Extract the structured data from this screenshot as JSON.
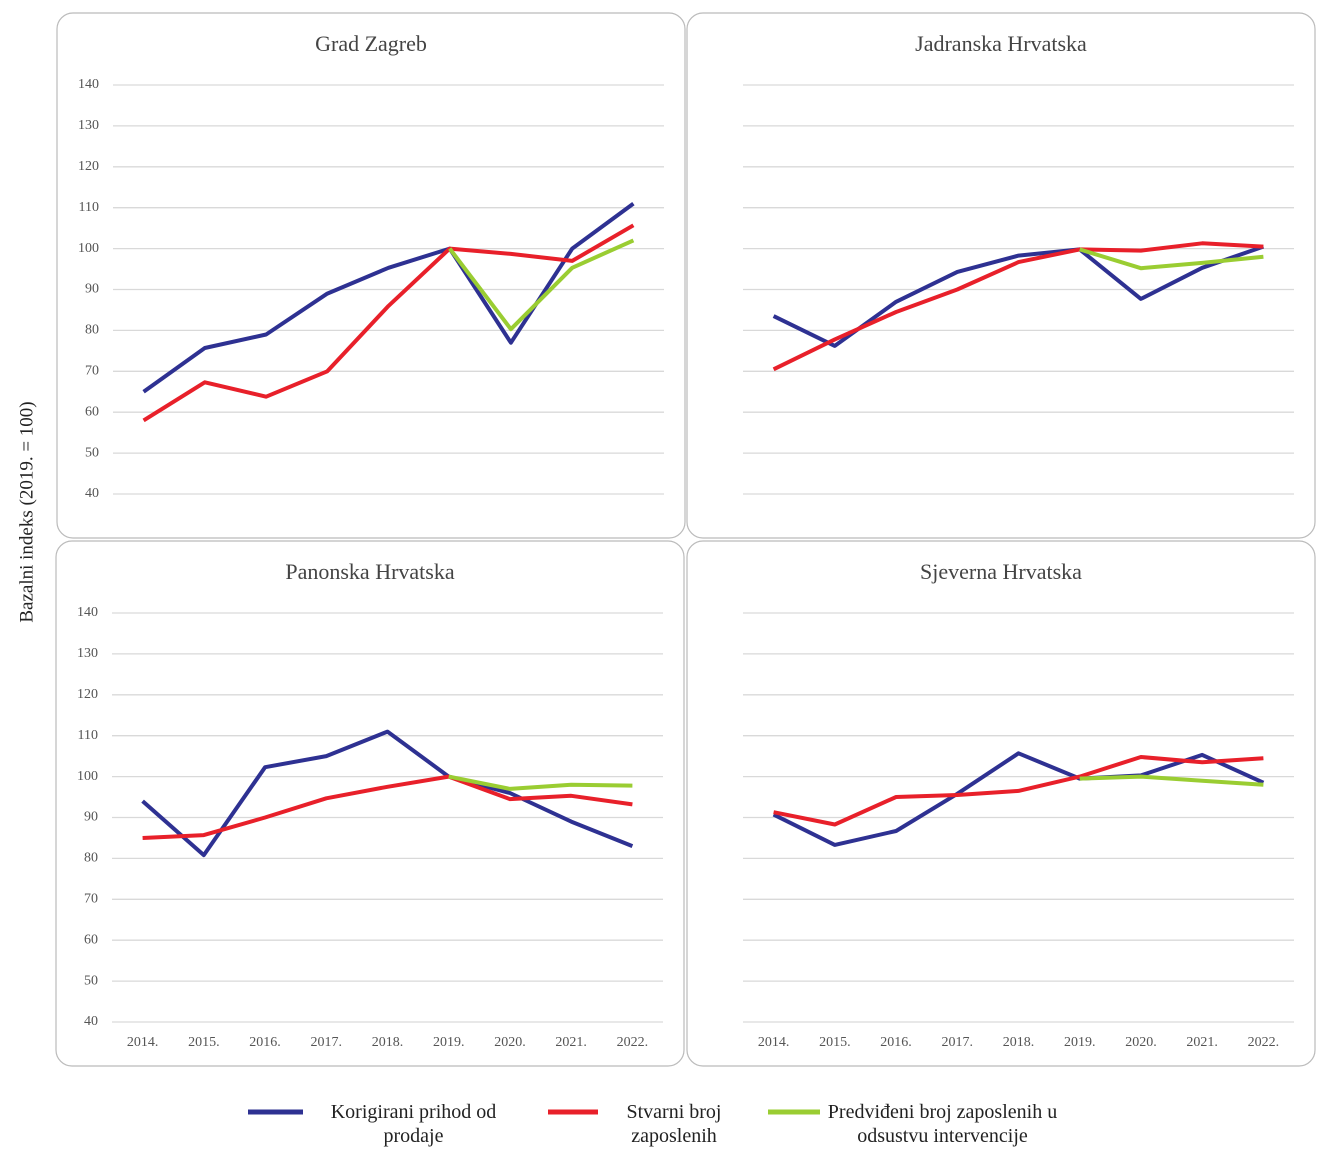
{
  "y_label": "Bazalni indeks (2019. = 100)",
  "chart_data": [
    {
      "type": "line",
      "title": "Grad Zagreb",
      "show_ytick_labels": true,
      "grid": true,
      "categories": [
        null,
        null,
        null,
        null,
        null,
        null,
        null,
        null,
        null
      ],
      "ylim": [
        40,
        140
      ],
      "yticks": [
        40,
        50,
        60,
        70,
        80,
        90,
        100,
        110,
        120,
        130,
        140
      ],
      "series": [
        {
          "name": "Korigirani prihod od prodaje",
          "color": "#2e3192",
          "values": [
            65,
            75.7,
            79,
            89,
            95.3,
            100,
            77,
            100,
            111
          ]
        },
        {
          "name": "Stvarni broj zaposlenih",
          "color": "#e8202a",
          "values": [
            58,
            67.3,
            63.8,
            70,
            86,
            100,
            98.7,
            97,
            105.7
          ]
        },
        {
          "name": "Predviđeni broj zaposlenih u odsustvu intervencije",
          "color": "#9acd32",
          "values": [
            null,
            null,
            null,
            null,
            null,
            100,
            80.3,
            95.3,
            102
          ]
        }
      ]
    },
    {
      "type": "line",
      "title": "Jadranska Hrvatska",
      "show_ytick_labels": false,
      "grid": true,
      "categories": [
        null,
        null,
        null,
        null,
        null,
        null,
        null,
        null,
        null
      ],
      "ylim": [
        40,
        140
      ],
      "yticks": [
        40,
        50,
        60,
        70,
        80,
        90,
        100,
        110,
        120,
        130,
        140
      ],
      "series": [
        {
          "color": "#2e3192",
          "values": [
            83.5,
            76.2,
            87,
            94.3,
            98.3,
            99.8,
            87.7,
            95.3,
            100.5
          ]
        },
        {
          "color": "#e8202a",
          "values": [
            70.5,
            77.8,
            84.5,
            90,
            96.7,
            99.8,
            99.5,
            101.3,
            100.5
          ]
        },
        {
          "color": "#9acd32",
          "values": [
            null,
            null,
            null,
            null,
            null,
            99.8,
            95.2,
            96.5,
            98
          ]
        }
      ]
    },
    {
      "type": "line",
      "title": "Panonska Hrvatska",
      "show_ytick_labels": true,
      "grid": true,
      "categories": [
        "2014.",
        "2015.",
        "2016.",
        "2017.",
        "2018.",
        "2019.",
        "2020.",
        "2021.",
        "2022."
      ],
      "ylim": [
        40,
        140
      ],
      "yticks": [
        40,
        50,
        60,
        70,
        80,
        90,
        100,
        110,
        120,
        130,
        140
      ],
      "series": [
        {
          "color": "#2e3192",
          "values": [
            94,
            80.8,
            102.3,
            105,
            111,
            100,
            96,
            89,
            83
          ]
        },
        {
          "color": "#e8202a",
          "values": [
            85,
            85.7,
            90,
            94.7,
            97.5,
            100,
            94.5,
            95.3,
            93.2
          ]
        },
        {
          "color": "#9acd32",
          "values": [
            null,
            null,
            null,
            null,
            null,
            100,
            97,
            98,
            97.8
          ]
        }
      ]
    },
    {
      "type": "line",
      "title": "Sjeverna Hrvatska",
      "show_ytick_labels": false,
      "grid": true,
      "categories": [
        "2014.",
        "2015.",
        "2016.",
        "2017.",
        "2018.",
        "2019.",
        "2020.",
        "2021.",
        "2022."
      ],
      "ylim": [
        40,
        140
      ],
      "yticks": [
        40,
        50,
        60,
        70,
        80,
        90,
        100,
        110,
        120,
        130,
        140
      ],
      "series": [
        {
          "color": "#2e3192",
          "values": [
            90.7,
            83.3,
            86.7,
            95.8,
            105.7,
            99.5,
            100.3,
            105.3,
            98.5
          ]
        },
        {
          "color": "#e8202a",
          "values": [
            91.3,
            88.3,
            95,
            95.5,
            96.5,
            100,
            104.8,
            103.5,
            104.5
          ]
        },
        {
          "color": "#9acd32",
          "values": [
            null,
            null,
            null,
            null,
            null,
            99.5,
            100,
            99,
            98
          ]
        }
      ]
    }
  ]
}
